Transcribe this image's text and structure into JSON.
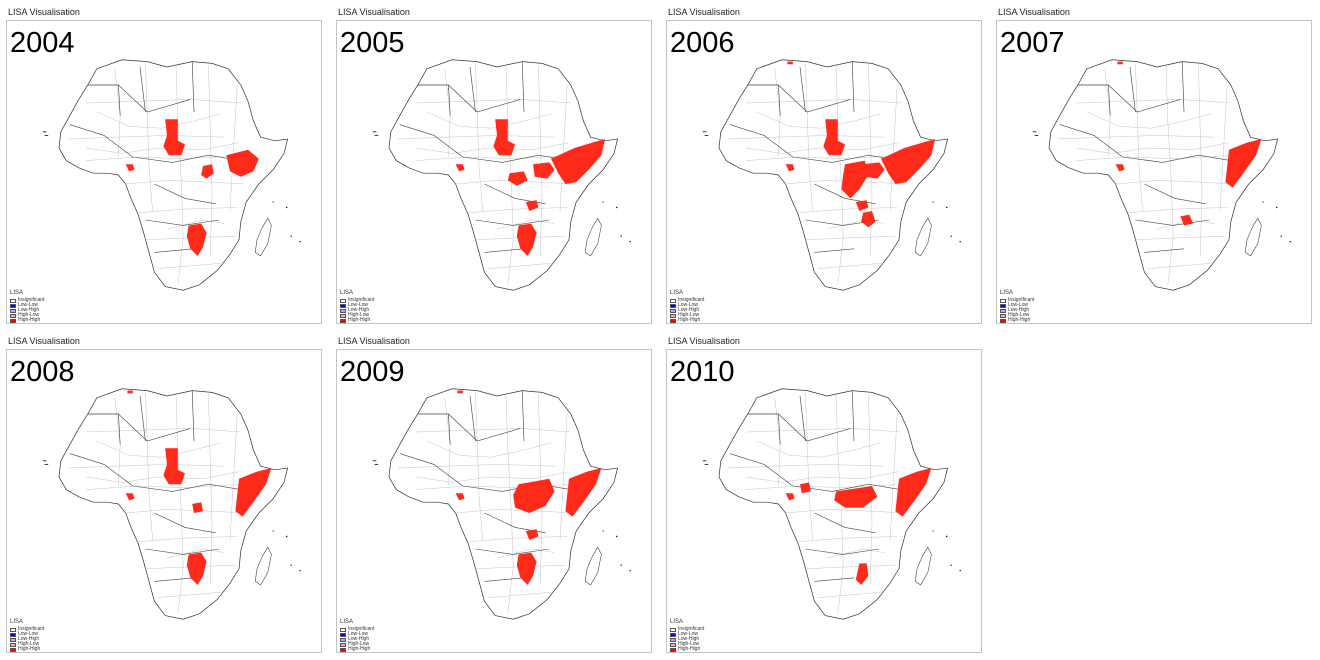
{
  "caption": "LISA Visualisation",
  "legend": {
    "title": "LISA",
    "items": [
      {
        "label": "Insignificant",
        "color": "#ffffff"
      },
      {
        "label": "Low-Low",
        "color": "#0000ff"
      },
      {
        "label": "Low-High",
        "color": "#a7adf9"
      },
      {
        "label": "High-Low",
        "color": "#f4ada8"
      },
      {
        "label": "High-High",
        "color": "#ff0000"
      }
    ]
  },
  "panels": [
    {
      "year": "2004",
      "hotspots": [
        "chad",
        "south-sudan-east",
        "ethiopia-somalia",
        "zimbabwe-mozambique",
        "liberia-coast"
      ]
    },
    {
      "year": "2005",
      "hotspots": [
        "chad",
        "south-sudan",
        "ethiopia-somalia-large",
        "car-west",
        "congo-east",
        "zimbabwe-mozambique",
        "liberia-coast"
      ]
    },
    {
      "year": "2006",
      "hotspots": [
        "chad",
        "south-sudan",
        "ethiopia-somalia-large",
        "central-africa",
        "congo-east",
        "tanzania-west",
        "liberia-coast",
        "north-africa-coast"
      ]
    },
    {
      "year": "2007",
      "hotspots": [
        "somalia",
        "zambia-south",
        "liberia-coast",
        "north-africa-coast"
      ]
    },
    {
      "year": "2008",
      "hotspots": [
        "chad",
        "car-east",
        "somalia",
        "zimbabwe-mozambique",
        "liberia-coast",
        "north-africa-coast"
      ]
    },
    {
      "year": "2009",
      "hotspots": [
        "sudan-car",
        "somalia",
        "congo-east",
        "zimbabwe-mozambique",
        "liberia-coast",
        "north-africa-coast"
      ]
    },
    {
      "year": "2010",
      "hotspots": [
        "nigeria-east",
        "south-sudan-car",
        "somalia",
        "mozambique",
        "liberia-coast"
      ]
    }
  ]
}
